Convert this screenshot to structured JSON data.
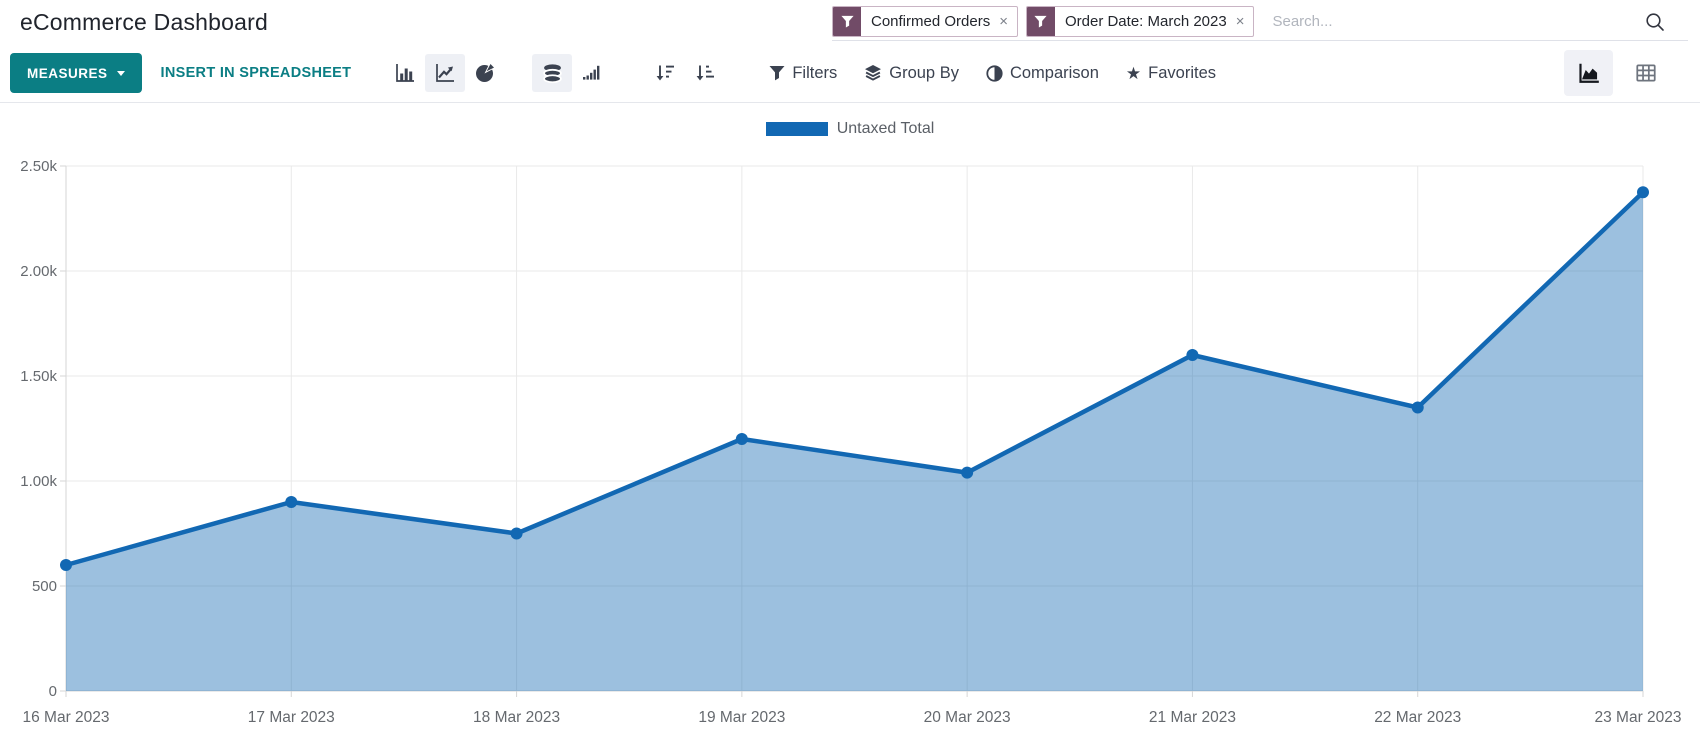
{
  "page_title": "eCommerce Dashboard",
  "search_bar": {
    "facets": [
      {
        "icon": "filter-funnel",
        "label": "Confirmed Orders",
        "close_glyph": "×"
      },
      {
        "icon": "filter-funnel",
        "label": "Order Date: March 2023",
        "close_glyph": "×"
      }
    ],
    "placeholder": "Search..."
  },
  "toolbar": {
    "measures": "MEASURES",
    "insert_in_spreadsheet": "INSERT IN SPREADSHEET",
    "filters": "Filters",
    "group_by": "Group By",
    "comparison": "Comparison",
    "favorites": "Favorites",
    "favorites_star_glyph": "★"
  },
  "colors": {
    "accent_teal": "#0b7e84",
    "brand_purple": "#714b67",
    "line_blue": "#1268b3",
    "area_fill": "rgba(18,104,179,0.42)",
    "grid_line": "#e9e9e9",
    "axis_line": "#d6d6d6",
    "axis_text": "#65696e"
  },
  "chart_data": {
    "type": "area",
    "title": "",
    "xlabel": "",
    "ylabel": "",
    "legend": [
      "Untaxed Total"
    ],
    "legend_position": "top",
    "grid": true,
    "categories": [
      "16 Mar 2023",
      "17 Mar 2023",
      "18 Mar 2023",
      "19 Mar 2023",
      "20 Mar 2023",
      "21 Mar 2023",
      "22 Mar 2023",
      "23 Mar 2023"
    ],
    "series": [
      {
        "name": "Untaxed Total",
        "values": [
          600,
          900,
          750,
          1200,
          1040,
          1600,
          1350,
          2375
        ]
      }
    ],
    "ylim": [
      0,
      2500
    ],
    "yticks": [
      0,
      500,
      1000,
      1500,
      2000,
      2500
    ],
    "ytick_labels": [
      "0",
      "500",
      "1.00k",
      "1.50k",
      "2.00k",
      "2.50k"
    ]
  }
}
